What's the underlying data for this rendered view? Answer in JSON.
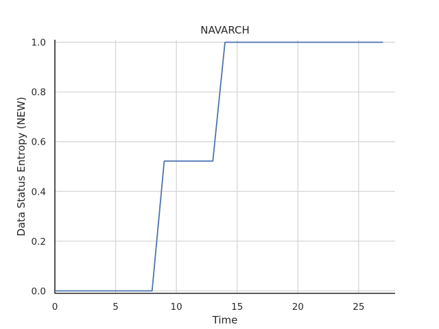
{
  "chart_data": {
    "type": "line",
    "title": "NAVARCH",
    "xlabel": "Time",
    "ylabel": "Data Status Entropy (NEW)",
    "xlim": [
      0,
      28
    ],
    "ylim": [
      -0.01,
      1.01
    ],
    "xticks": [
      0,
      5,
      10,
      15,
      20,
      25
    ],
    "xtick_labels": [
      "0",
      "5",
      "10",
      "15",
      "20",
      "25"
    ],
    "yticks": [
      0.0,
      0.2,
      0.4,
      0.6,
      0.8,
      1.0
    ],
    "ytick_labels": [
      "0.0",
      "0.2",
      "0.4",
      "0.6",
      "0.8",
      "1.0"
    ],
    "grid": true,
    "series": [
      {
        "name": "NAVARCH",
        "color": "#4c72b0",
        "x": [
          0,
          1,
          2,
          3,
          4,
          5,
          6,
          7,
          8,
          9,
          10,
          11,
          12,
          13,
          14,
          15,
          16,
          17,
          18,
          19,
          20,
          21,
          22,
          23,
          24,
          25,
          26,
          27
        ],
        "y": [
          0,
          0,
          0,
          0,
          0,
          0,
          0,
          0,
          0,
          0.522,
          0.522,
          0.522,
          0.522,
          0.522,
          1,
          1,
          1,
          1,
          1,
          1,
          1,
          1,
          1,
          1,
          1,
          1,
          1,
          1
        ]
      }
    ]
  }
}
